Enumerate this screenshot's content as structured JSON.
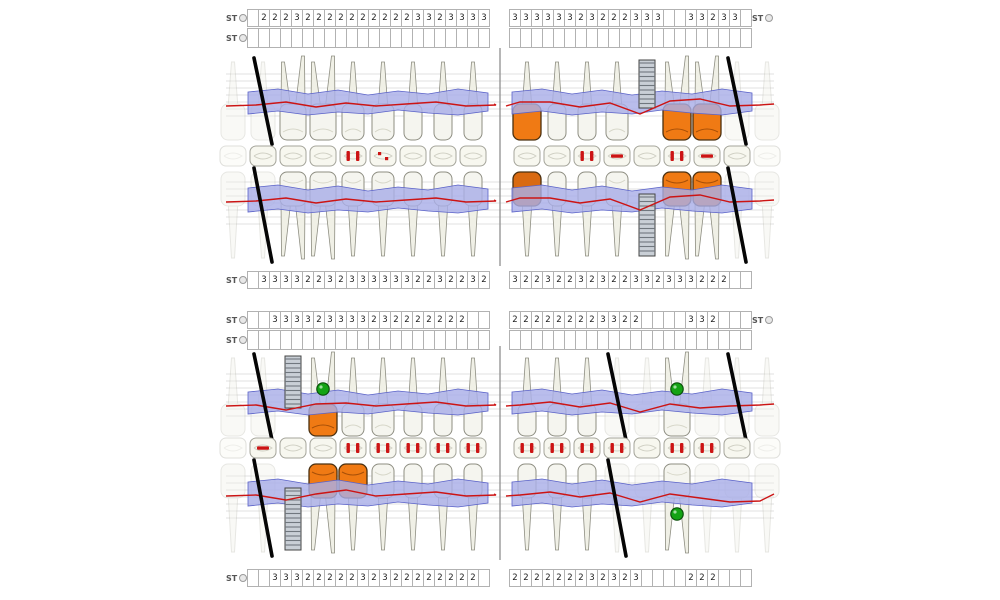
{
  "window": {
    "background": "#ffffff"
  },
  "labels": {
    "st": "ST"
  },
  "colors": {
    "gum": "#a9aee8",
    "gum_edge": "#5a62c8",
    "red_mark": "#cc1414",
    "crown_orange": "#f07a14",
    "crown_dark_orange": "#d96a12",
    "tooth": "#f5f5ef",
    "tooth_root": "#f0f0e6",
    "tooth_edge": "#8e8e82",
    "grid_line": "#d9d9d9",
    "implant_gray": "#c9cfd6",
    "green_marker": "#14a314",
    "slash_black": "#050505",
    "box_border": "#b2b2b2"
  },
  "charts": [
    {
      "name": "upper-chart",
      "numbers_top": {
        "left": [
          "",
          "2",
          "2",
          "2",
          "3",
          "2",
          "2",
          "2",
          "2",
          "2",
          "2",
          "2",
          "2",
          "2",
          "2",
          "3",
          "3",
          "2",
          "3",
          "3",
          "3",
          "3"
        ],
        "right": [
          "3",
          "3",
          "3",
          "3",
          "3",
          "3",
          "2",
          "3",
          "2",
          "2",
          "2",
          "3",
          "3",
          "3",
          "",
          "",
          "3",
          "3",
          "2",
          "3",
          "3",
          ""
        ]
      },
      "numbers_bottom": {
        "left": [
          "",
          "3",
          "3",
          "3",
          "3",
          "2",
          "2",
          "3",
          "2",
          "3",
          "3",
          "3",
          "3",
          "3",
          "3",
          "2",
          "2",
          "3",
          "2",
          "2",
          "3",
          "2"
        ],
        "right": [
          "3",
          "2",
          "2",
          "3",
          "2",
          "2",
          "3",
          "2",
          "3",
          "2",
          "2",
          "3",
          "3",
          "2",
          "3",
          "3",
          "3",
          "2",
          "2",
          "2",
          "",
          ""
        ]
      },
      "teeth_upper": {
        "left": [
          "slash-ghost",
          "normal",
          "normal",
          "normal",
          "normal",
          "normal",
          "normal",
          "normal"
        ],
        "right": [
          "crown-orange",
          "normal",
          "normal",
          "normal",
          "implant",
          "crown-orange",
          "crown-orange",
          "slash-ghost"
        ]
      },
      "teeth_lower": {
        "left": [
          "slash-ghost",
          "normal",
          "normal",
          "normal",
          "normal",
          "normal",
          "normal",
          "normal"
        ],
        "right": [
          "crown-dark",
          "normal",
          "normal",
          "normal",
          "implant",
          "crown-orange",
          "crown-orange",
          "slash-ghost"
        ]
      },
      "occlusal": {
        "left": [
          "",
          "",
          "",
          "red-v",
          "red-dot",
          "",
          "",
          ""
        ],
        "right": [
          "",
          "",
          "red-v",
          "red-h",
          "",
          "red-v",
          "red-h",
          ""
        ]
      }
    },
    {
      "name": "lower-chart",
      "numbers_top": {
        "left": [
          "",
          "",
          "3",
          "3",
          "3",
          "3",
          "2",
          "3",
          "3",
          "3",
          "3",
          "2",
          "3",
          "2",
          "2",
          "2",
          "2",
          "2",
          "2",
          "2",
          "",
          ""
        ],
        "right": [
          "2",
          "2",
          "2",
          "2",
          "2",
          "2",
          "2",
          "2",
          "3",
          "3",
          "2",
          "2",
          "",
          "",
          "",
          "",
          "3",
          "3",
          "2",
          "",
          "",
          ""
        ]
      },
      "numbers_bottom": {
        "left": [
          "",
          "",
          "3",
          "3",
          "3",
          "2",
          "2",
          "2",
          "2",
          "2",
          "3",
          "2",
          "3",
          "2",
          "2",
          "2",
          "2",
          "2",
          "2",
          "2",
          "2",
          ""
        ],
        "right": [
          "2",
          "2",
          "2",
          "2",
          "2",
          "2",
          "2",
          "3",
          "2",
          "3",
          "2",
          "3",
          "",
          "",
          "",
          "",
          "2",
          "2",
          "2",
          "",
          "",
          ""
        ]
      },
      "teeth_upper": {
        "left": [
          "slash-ghost",
          "implant",
          "crown-orange-green",
          "normal",
          "normal",
          "normal",
          "normal",
          "normal"
        ],
        "right": [
          "normal",
          "normal",
          "normal",
          "slash-ghost",
          "ghost",
          "normal-green",
          "ghost",
          "slash-ghost"
        ]
      },
      "teeth_lower": {
        "left": [
          "slash-ghost",
          "implant",
          "crown-orange",
          "crown-orange",
          "normal",
          "normal",
          "normal",
          "normal"
        ],
        "right": [
          "normal",
          "normal",
          "normal",
          "slash-ghost",
          "ghost",
          "normal-green",
          "ghost",
          "ghost"
        ]
      },
      "occlusal": {
        "left": [
          "red-h",
          "",
          "",
          "red-v",
          "red-v",
          "red-v",
          "red-v",
          "red-v"
        ],
        "right": [
          "red-v",
          "red-v",
          "red-v",
          "red-v",
          "",
          "red-v",
          "red-v",
          ""
        ]
      }
    }
  ]
}
